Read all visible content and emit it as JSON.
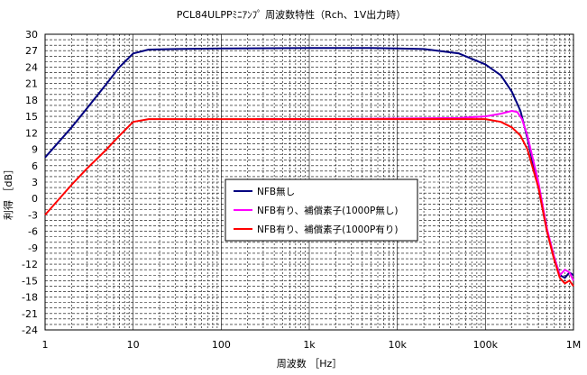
{
  "chart_data": {
    "type": "line",
    "title": "PCL84ULPPﾐﾆｱﾝﾌﾟ 周波数特性（Rch、1V出力時）",
    "xlabel": "周波数 ［Hz］",
    "ylabel": "利得 ［dB］",
    "x_scale": "log",
    "xlim": [
      1,
      1000000
    ],
    "ylim": [
      -24,
      30
    ],
    "x_ticks": [
      1,
      10,
      100,
      1000,
      10000,
      100000,
      1000000
    ],
    "x_tick_labels": [
      "1",
      "10",
      "100",
      "1k",
      "10k",
      "100k",
      "1M"
    ],
    "y_ticks": [
      -24,
      -21,
      -18,
      -15,
      -12,
      -9,
      -6,
      -3,
      0,
      3,
      6,
      9,
      12,
      15,
      18,
      21,
      24,
      27,
      30
    ],
    "grid": true,
    "legend_position": "center",
    "series": [
      {
        "name": "NFB無し",
        "color": "#000080",
        "points": [
          [
            1,
            7.5
          ],
          [
            2,
            13
          ],
          [
            3,
            16.5
          ],
          [
            5,
            21
          ],
          [
            7,
            24
          ],
          [
            10,
            26.5
          ],
          [
            15,
            27.2
          ],
          [
            30,
            27.3
          ],
          [
            100,
            27.4
          ],
          [
            1000,
            27.5
          ],
          [
            5000,
            27.5
          ],
          [
            10000,
            27.4
          ],
          [
            20000,
            27.3
          ],
          [
            50000,
            26.5
          ],
          [
            100000,
            24.5
          ],
          [
            150000,
            22.5
          ],
          [
            200000,
            19.5
          ],
          [
            250000,
            16
          ],
          [
            300000,
            11
          ],
          [
            400000,
            2
          ],
          [
            500000,
            -6
          ],
          [
            600000,
            -10.5
          ],
          [
            700000,
            -14
          ],
          [
            800000,
            -14.5
          ],
          [
            900000,
            -13.5
          ],
          [
            1000000,
            -14
          ]
        ]
      },
      {
        "name": "NFB有り、補償素子(1000P無し)",
        "color": "#ff00ff",
        "points": [
          [
            250,
            14.5
          ],
          [
            1000,
            14.5
          ],
          [
            10000,
            14.6
          ],
          [
            50000,
            14.7
          ],
          [
            100000,
            15
          ],
          [
            150000,
            15.5
          ],
          [
            200000,
            16
          ],
          [
            230000,
            15.8
          ],
          [
            260000,
            14.5
          ],
          [
            300000,
            11.5
          ],
          [
            400000,
            3
          ],
          [
            500000,
            -5.5
          ],
          [
            600000,
            -10.5
          ],
          [
            700000,
            -14
          ],
          [
            800000,
            -13
          ],
          [
            900000,
            -13.5
          ],
          [
            1000000,
            -15
          ]
        ]
      },
      {
        "name": "NFB有り、補償素子(1000P有り)",
        "color": "#ff0000",
        "points": [
          [
            1,
            -3
          ],
          [
            2,
            2.5
          ],
          [
            3,
            5.5
          ],
          [
            5,
            9
          ],
          [
            7,
            11.5
          ],
          [
            10,
            14
          ],
          [
            15,
            14.5
          ],
          [
            50,
            14.5
          ],
          [
            1000,
            14.5
          ],
          [
            10000,
            14.5
          ],
          [
            50000,
            14.5
          ],
          [
            100000,
            14.5
          ],
          [
            150000,
            14
          ],
          [
            200000,
            13
          ],
          [
            250000,
            11.5
          ],
          [
            300000,
            9
          ],
          [
            400000,
            2
          ],
          [
            500000,
            -6
          ],
          [
            600000,
            -11
          ],
          [
            700000,
            -14.5
          ],
          [
            800000,
            -15.5
          ],
          [
            900000,
            -15
          ],
          [
            1000000,
            -16
          ]
        ]
      }
    ]
  }
}
